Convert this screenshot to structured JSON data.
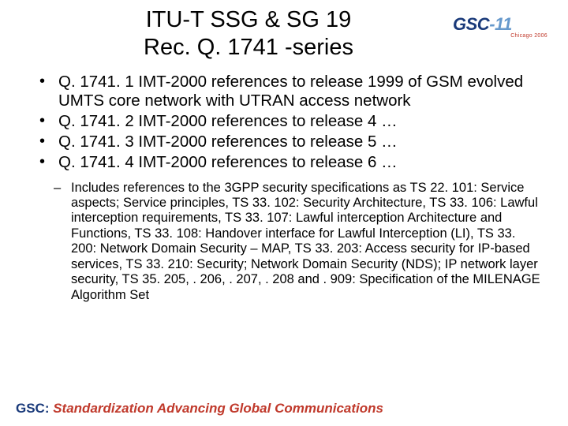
{
  "title_line1": "ITU-T SSG & SG 19",
  "title_line2": "Rec. Q. 1741 -series",
  "logo": {
    "gsc": "GSC",
    "dash11": "-11",
    "subtitle": "Chicago 2006"
  },
  "bullets": [
    "Q. 1741. 1 IMT-2000 references to release 1999 of GSM evolved UMTS core network with UTRAN access network",
    "Q. 1741. 2 IMT-2000 references to release 4 …",
    "Q. 1741. 3 IMT-2000 references to release 5 …",
    "Q. 1741. 4 IMT-2000 references to release 6 …"
  ],
  "sub_bullet": "Includes references to the 3GPP security specifications as TS 22. 101: Service aspects; Service principles, TS 33. 102: Security Architecture, TS 33. 106: Lawful interception requirements, TS 33. 107: Lawful interception Architecture and Functions, TS 33. 108: Handover interface for Lawful Interception (LI), TS 33. 200: Network Domain Security – MAP, TS 33. 203: Access security for IP-based services, TS 33. 210: Security; Network Domain Security (NDS); IP network layer security, TS 35. 205, . 206, . 207, . 208 and . 909: Specification of the MILENAGE Algorithm Set",
  "footer": {
    "gsc": "GSC:",
    "tagline": " Standardization Advancing Global Communications"
  },
  "colors": {
    "text": "#000000",
    "background": "#ffffff",
    "logo_dark": "#1a3a7a",
    "logo_light": "#6699cc",
    "accent_red": "#c0392b"
  }
}
